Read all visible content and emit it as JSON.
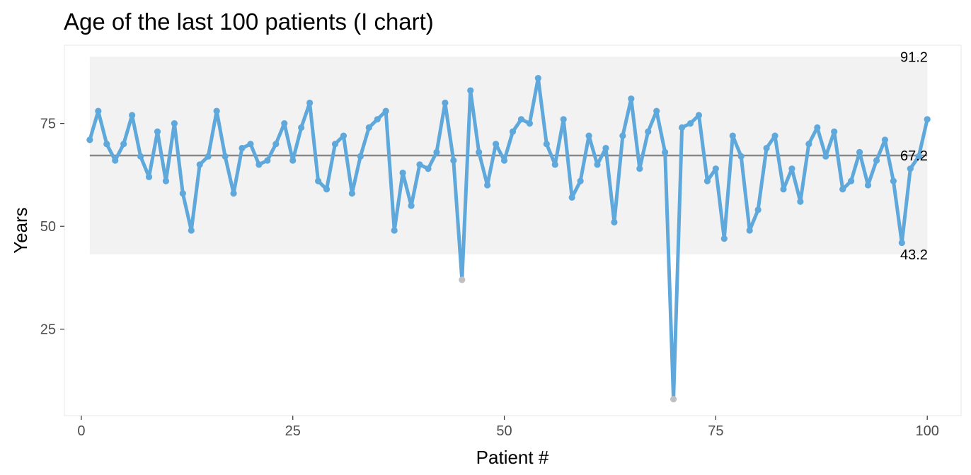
{
  "chart_data": {
    "type": "line",
    "title": "Age of the last 100 patients (I chart)",
    "xlabel": "Patient #",
    "ylabel": "Years",
    "xlim": [
      -2,
      104
    ],
    "ylim": [
      4,
      94
    ],
    "x_ticks": [
      0,
      25,
      50,
      75,
      100
    ],
    "y_ticks": [
      25,
      50,
      75
    ],
    "grid": false,
    "control_limits": {
      "upper": 91.2,
      "center": 67.2,
      "lower": 43.2,
      "upper_label": "91.2",
      "center_label": "67.2",
      "lower_label": "43.2"
    },
    "colors": {
      "line": "#5fa8dc",
      "center_line": "#888888",
      "band": "#f2f2f2",
      "outlier": "#c0c0c0",
      "panel_border": "#ebebeb",
      "tick": "#333333"
    },
    "series": [
      {
        "x": [
          1,
          2,
          3,
          4,
          5,
          6,
          7,
          8,
          9,
          10,
          11,
          12,
          13,
          14,
          15,
          16,
          17,
          18,
          19,
          20,
          21,
          22,
          23,
          24,
          25,
          26,
          27,
          28,
          29,
          30,
          31,
          32,
          33,
          34,
          35,
          36,
          37,
          38,
          39,
          40,
          41,
          42,
          43,
          44,
          45,
          46,
          47,
          48,
          49,
          50,
          51,
          52,
          53,
          54,
          55,
          56,
          57,
          58,
          59,
          60,
          61,
          62,
          63,
          64,
          65,
          66,
          67,
          68,
          69,
          70,
          71,
          72,
          73,
          74,
          75,
          76,
          77,
          78,
          79,
          80,
          81,
          82,
          83,
          84,
          85,
          86,
          87,
          88,
          89,
          90,
          91,
          92,
          93,
          94,
          95,
          96,
          97,
          98,
          99,
          100
        ],
        "y": [
          71,
          78,
          70,
          66,
          70,
          77,
          67,
          62,
          73,
          61,
          75,
          58,
          49,
          65,
          67,
          78,
          67,
          58,
          69,
          70,
          65,
          66,
          70,
          75,
          66,
          74,
          80,
          61,
          59,
          70,
          72,
          58,
          67,
          74,
          76,
          78,
          49,
          63,
          55,
          65,
          64,
          68,
          80,
          66,
          37,
          83,
          68,
          60,
          70,
          66,
          73,
          76,
          75,
          86,
          70,
          65,
          76,
          57,
          61,
          72,
          65,
          69,
          51,
          72,
          81,
          64,
          73,
          78,
          68,
          8,
          74,
          75,
          77,
          61,
          64,
          47,
          72,
          67,
          49,
          54,
          69,
          72,
          59,
          64,
          56,
          70,
          74,
          67,
          73,
          59,
          61,
          68,
          60,
          66,
          71,
          61,
          46,
          64,
          67,
          76
        ]
      }
    ],
    "outlier_x": [
      45,
      70
    ]
  }
}
